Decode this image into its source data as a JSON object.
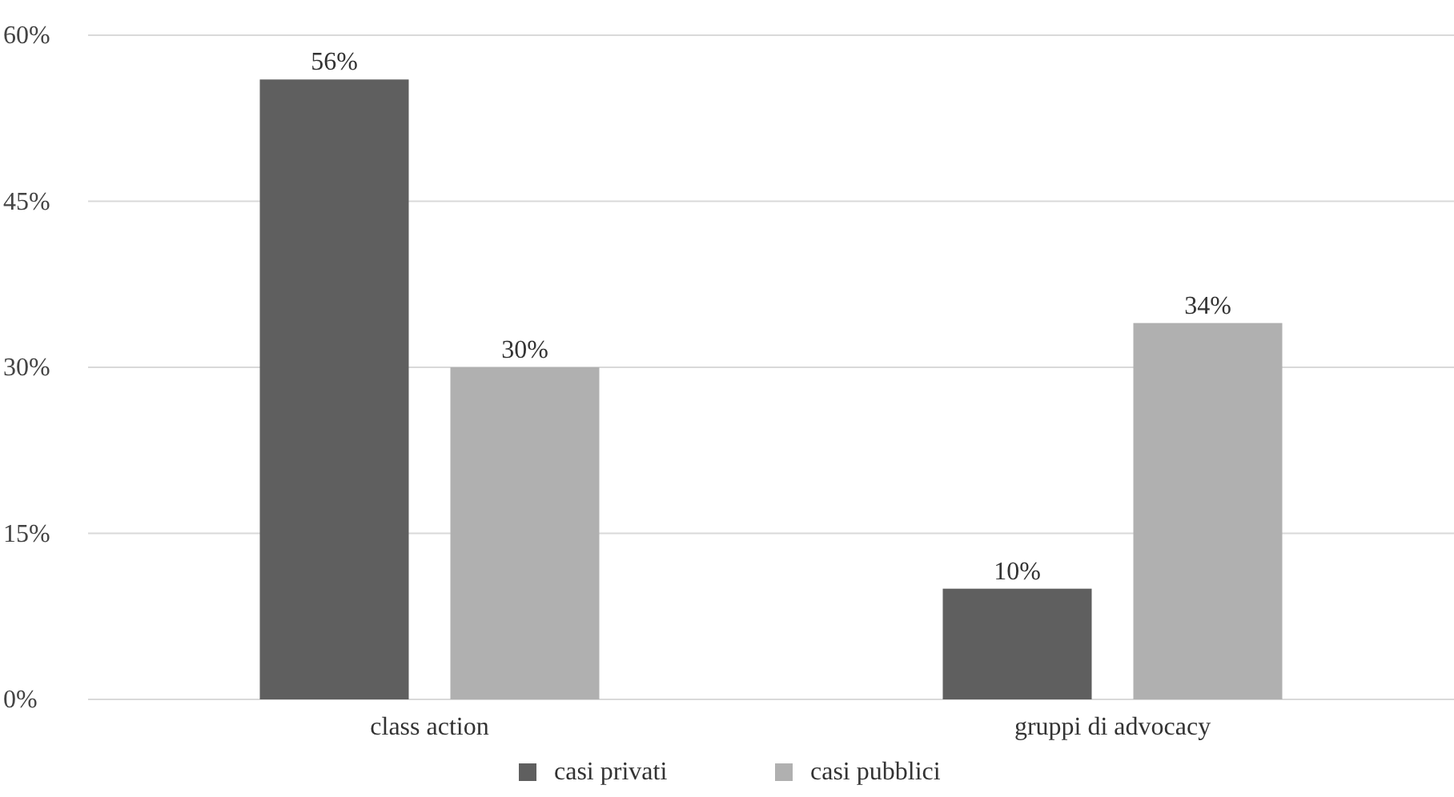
{
  "chart_data": {
    "type": "bar",
    "categories": [
      "class action",
      "gruppi di advocacy"
    ],
    "series": [
      {
        "name": "casi privati",
        "color": "#5f5f5f",
        "values": [
          56,
          10
        ]
      },
      {
        "name": "casi pubblici",
        "color": "#b0b0b0",
        "values": [
          30,
          34
        ]
      }
    ],
    "ylim": [
      0,
      60
    ],
    "yticks": [
      {
        "value": 0,
        "label": "0%"
      },
      {
        "value": 15,
        "label": "15%"
      },
      {
        "value": 30,
        "label": "30%"
      },
      {
        "value": 45,
        "label": "45%"
      },
      {
        "value": 60,
        "label": "60%"
      }
    ],
    "value_labels": [
      [
        "56%",
        "10%"
      ],
      [
        "30%",
        "34%"
      ]
    ],
    "grid": "y",
    "legend": "bottom"
  }
}
